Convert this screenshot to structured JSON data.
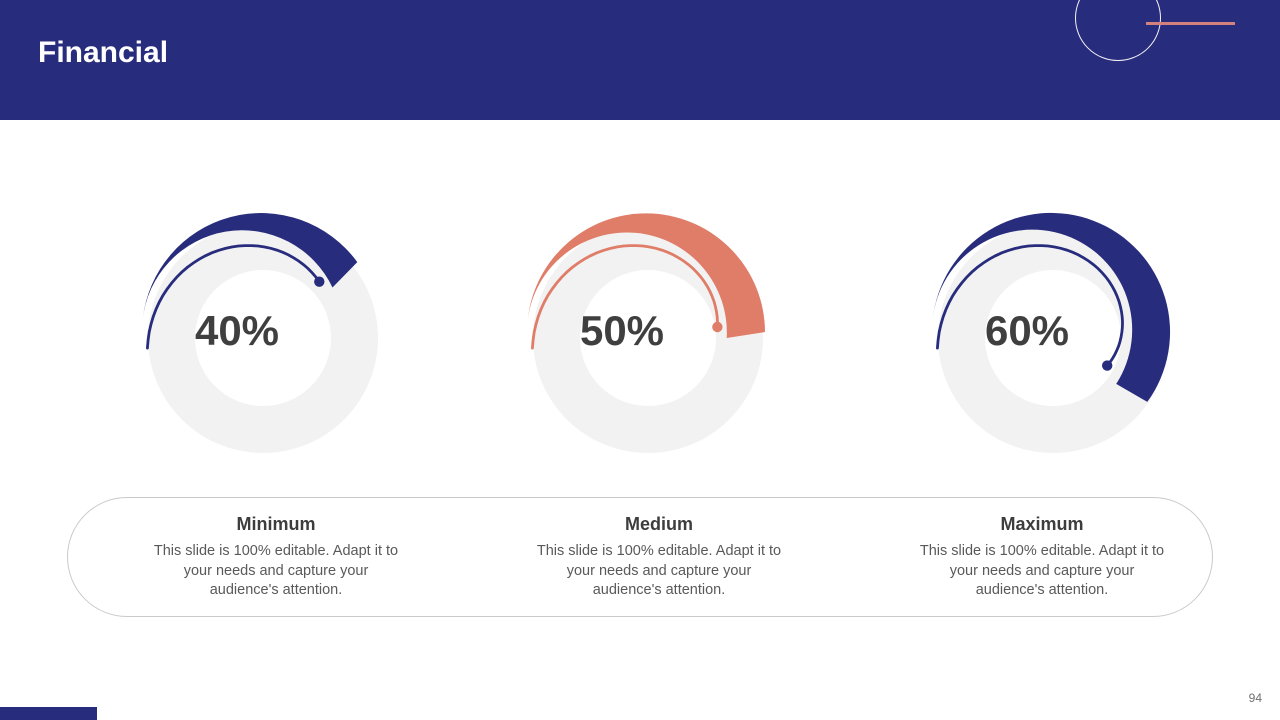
{
  "header": {
    "title": "Financial"
  },
  "theme": {
    "navy": "#282c7d",
    "salmon": "#e07d68",
    "track": "#f2f2f2",
    "value_text": "#3f3f3f",
    "label_text": "#3d3d3d",
    "body_text": "#595959",
    "pill_border": "#cacaca",
    "accent_line": "#d4807c",
    "page_number_text": "#6f6f6f"
  },
  "chart_data": [
    {
      "type": "gauge",
      "label": "Minimum",
      "value": 40,
      "display": "40%",
      "range": [
        0,
        100
      ],
      "color": "#282c7d"
    },
    {
      "type": "gauge",
      "label": "Medium",
      "value": 50,
      "display": "50%",
      "range": [
        0,
        100
      ],
      "color": "#e07d68"
    },
    {
      "type": "gauge",
      "label": "Maximum",
      "value": 60,
      "display": "60%",
      "range": [
        0,
        100
      ],
      "color": "#282c7d"
    }
  ],
  "cards": [
    {
      "title": "Minimum",
      "body_lines": [
        "This slide is 100% editable. Adapt it to",
        "your needs and capture your",
        "audience's attention."
      ]
    },
    {
      "title": "Medium",
      "body_lines": [
        "This slide is 100% editable. Adapt it to",
        "your needs and capture your",
        "audience's attention."
      ]
    },
    {
      "title": "Maximum",
      "body_lines": [
        "This slide is 100% editable. Adapt it to",
        "your needs and capture your",
        "audience's attention."
      ]
    }
  ],
  "footer": {
    "page_number": "94"
  }
}
